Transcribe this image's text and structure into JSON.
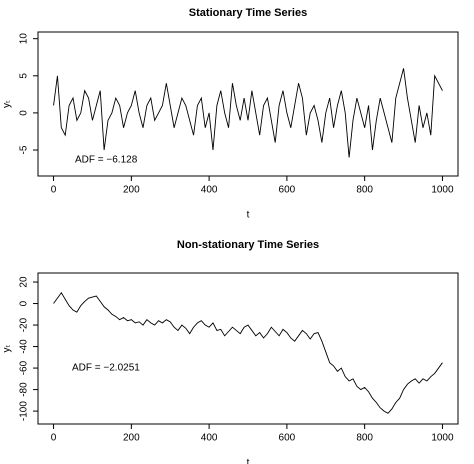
{
  "chart_data": [
    {
      "type": "line",
      "title": "Stationary Time Series",
      "x_label": "t",
      "y_label": "yₜ",
      "annotation": "ADF = −6.128",
      "color": "#000000",
      "x": [
        0,
        10,
        20,
        30,
        40,
        50,
        60,
        70,
        80,
        90,
        100,
        110,
        120,
        130,
        140,
        150,
        160,
        170,
        180,
        190,
        200,
        210,
        220,
        230,
        240,
        250,
        260,
        270,
        280,
        290,
        300,
        310,
        320,
        330,
        340,
        350,
        360,
        370,
        380,
        390,
        400,
        410,
        420,
        430,
        440,
        450,
        460,
        470,
        480,
        490,
        500,
        510,
        520,
        530,
        540,
        550,
        560,
        570,
        580,
        590,
        600,
        610,
        620,
        630,
        640,
        650,
        660,
        670,
        680,
        690,
        700,
        710,
        720,
        730,
        740,
        750,
        760,
        770,
        780,
        790,
        800,
        810,
        820,
        830,
        840,
        850,
        860,
        870,
        880,
        890,
        900,
        910,
        920,
        930,
        940,
        950,
        960,
        970,
        980,
        990,
        1000
      ],
      "values": [
        1,
        5,
        -2,
        -3,
        1,
        2,
        -1,
        0,
        3,
        2,
        -1,
        1,
        3,
        -5,
        -1,
        0,
        2,
        1,
        -2,
        0,
        1,
        3,
        0,
        -2,
        1,
        2,
        -1,
        0,
        1,
        4,
        1,
        -2,
        0,
        2,
        1,
        -1,
        -3,
        1,
        2,
        -2,
        0,
        -5,
        1,
        3,
        0,
        -2,
        4,
        1,
        -1,
        2,
        -1,
        3,
        0,
        -3,
        1,
        2,
        -1,
        -4,
        1,
        3,
        0,
        -2,
        1,
        4,
        2,
        -3,
        0,
        1,
        -1,
        -4,
        0,
        2,
        -2,
        1,
        3,
        0,
        -6,
        -1,
        2,
        0,
        -2,
        1,
        -5,
        -1,
        2,
        0,
        -2,
        -4,
        2,
        4,
        6,
        2,
        -1,
        -4,
        1,
        -2,
        0,
        -3,
        5,
        4,
        3
      ],
      "xlim": [
        -40,
        1040
      ],
      "ylim": [
        -8.5,
        10.9
      ],
      "xticks": [
        0,
        200,
        400,
        600,
        800,
        1000
      ],
      "yticks": [
        -5,
        0,
        5,
        10
      ]
    },
    {
      "type": "line",
      "title": "Non-stationary Time Series",
      "x_label": "t",
      "y_label": "yₜ",
      "annotation": "ADF = −2.0251",
      "color": "#000000",
      "x": [
        0,
        10,
        20,
        30,
        40,
        50,
        60,
        70,
        80,
        90,
        100,
        110,
        120,
        130,
        140,
        150,
        160,
        170,
        180,
        190,
        200,
        210,
        220,
        230,
        240,
        250,
        260,
        270,
        280,
        290,
        300,
        310,
        320,
        330,
        340,
        350,
        360,
        370,
        380,
        390,
        400,
        410,
        420,
        430,
        440,
        450,
        460,
        470,
        480,
        490,
        500,
        510,
        520,
        530,
        540,
        550,
        560,
        570,
        580,
        590,
        600,
        610,
        620,
        630,
        640,
        650,
        660,
        670,
        680,
        690,
        700,
        710,
        720,
        730,
        740,
        750,
        760,
        770,
        780,
        790,
        800,
        810,
        820,
        830,
        840,
        850,
        860,
        870,
        880,
        890,
        900,
        910,
        920,
        930,
        940,
        950,
        960,
        970,
        980,
        990,
        1000
      ],
      "values": [
        0,
        5,
        10,
        4,
        -2,
        -6,
        -8,
        -2,
        2,
        5,
        6,
        7,
        2,
        -3,
        -6,
        -10,
        -12,
        -15,
        -13,
        -16,
        -15,
        -18,
        -17,
        -20,
        -15,
        -18,
        -20,
        -16,
        -18,
        -15,
        -17,
        -22,
        -25,
        -20,
        -23,
        -28,
        -22,
        -18,
        -16,
        -20,
        -22,
        -18,
        -25,
        -24,
        -30,
        -26,
        -22,
        -25,
        -28,
        -22,
        -20,
        -25,
        -30,
        -27,
        -32,
        -28,
        -22,
        -26,
        -30,
        -24,
        -27,
        -32,
        -35,
        -30,
        -25,
        -28,
        -33,
        -28,
        -27,
        -35,
        -45,
        -55,
        -58,
        -63,
        -60,
        -68,
        -72,
        -70,
        -77,
        -80,
        -78,
        -82,
        -88,
        -92,
        -97,
        -100,
        -102,
        -98,
        -92,
        -88,
        -80,
        -75,
        -72,
        -70,
        -74,
        -70,
        -72,
        -68,
        -65,
        -60,
        -55
      ],
      "xlim": [
        -40,
        1040
      ],
      "ylim": [
        -112,
        28.4
      ],
      "xticks": [
        0,
        200,
        400,
        600,
        800,
        1000
      ],
      "yticks": [
        -100,
        -80,
        -60,
        -40,
        -20,
        0,
        20
      ]
    }
  ]
}
